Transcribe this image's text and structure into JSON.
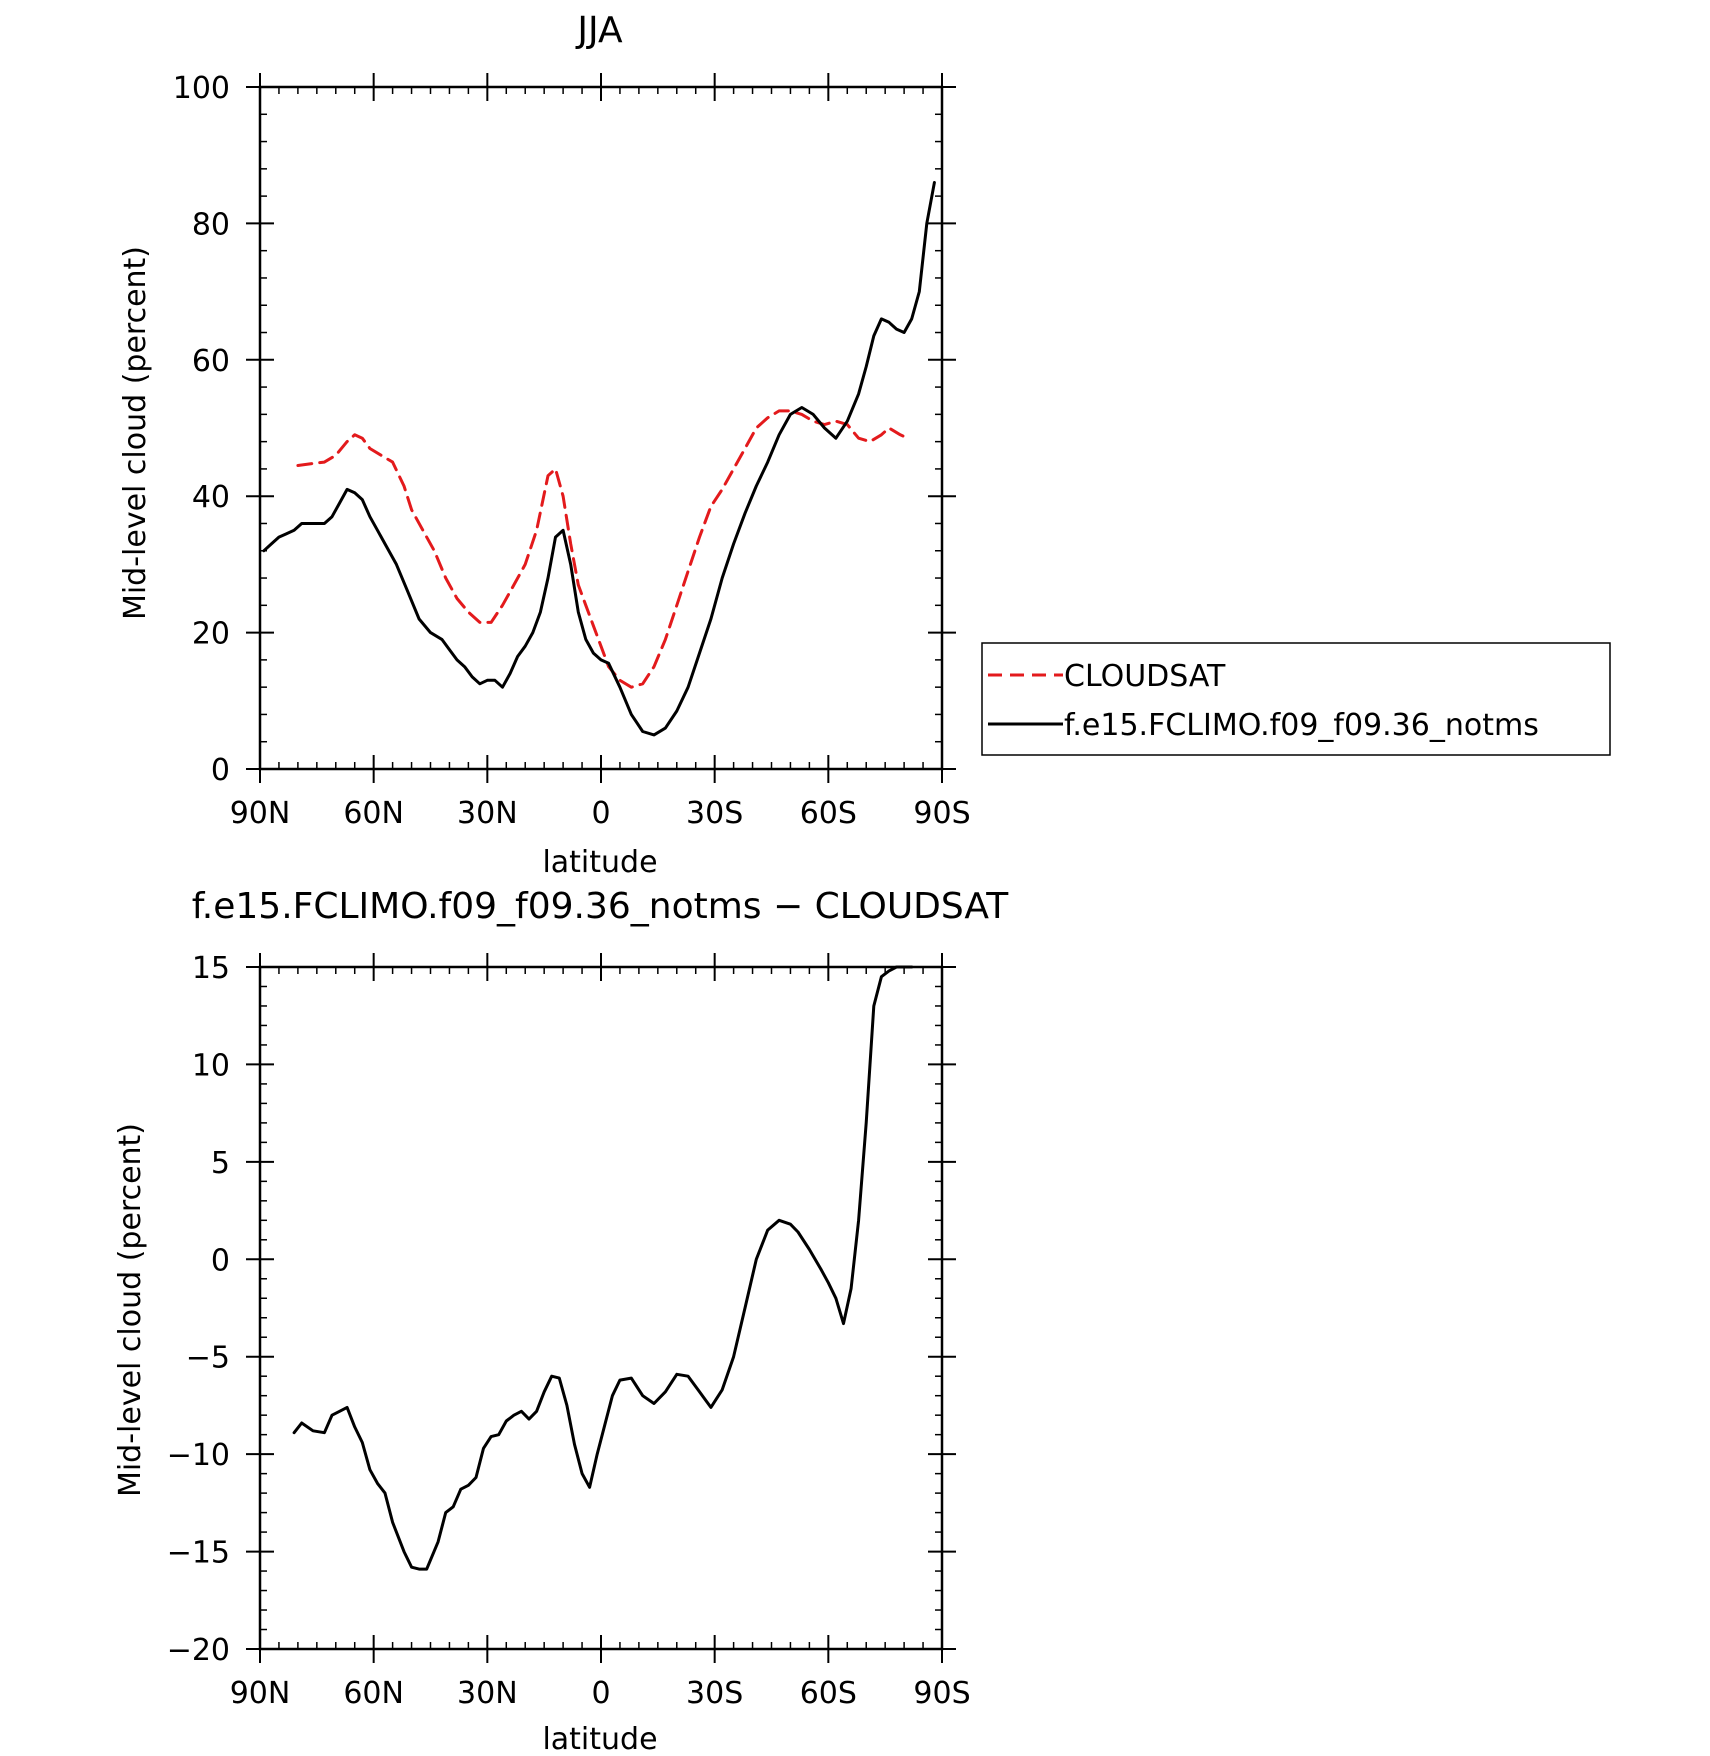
{
  "chart_data": [
    {
      "type": "line",
      "title": "JJA",
      "xlabel": "latitude",
      "ylabel": "Mid-level cloud (percent)",
      "xlim": [
        90,
        -90
      ],
      "ylim": [
        0,
        100
      ],
      "x_tick_values": [
        90,
        60,
        30,
        0,
        -30,
        -60,
        -90
      ],
      "x_tick_labels": [
        "90N",
        "60N",
        "30N",
        "0",
        "30S",
        "60S",
        "90S"
      ],
      "y_ticks": [
        0,
        20,
        40,
        60,
        80,
        100
      ],
      "legend_position": "right",
      "series": [
        {
          "name": "CLOUDSAT",
          "color": "#e31a1c",
          "dash": true,
          "x": [
            80,
            76,
            73,
            70,
            67,
            65,
            63,
            61,
            58,
            55,
            52,
            50,
            47,
            44,
            41,
            38,
            35,
            32,
            29,
            26,
            23,
            20,
            17,
            14,
            12,
            10,
            8,
            6,
            4,
            2,
            0,
            -2,
            -5,
            -8,
            -11,
            -14,
            -17,
            -20,
            -23,
            -26,
            -29,
            -32,
            -35,
            -38,
            -41,
            -44,
            -47,
            -50,
            -53,
            -56,
            -59,
            -62,
            -65,
            -68,
            -71,
            -74,
            -76,
            -79,
            -81
          ],
          "y": [
            44.5,
            44.8,
            45.0,
            46.0,
            48.0,
            49.0,
            48.5,
            47.0,
            46.0,
            45.0,
            41.5,
            38.0,
            35.0,
            32.0,
            28.0,
            25.0,
            23.0,
            21.5,
            21.5,
            24.0,
            27.0,
            30.0,
            35.0,
            43.0,
            44.0,
            40.0,
            33.0,
            27.0,
            24.0,
            21.0,
            18.0,
            15.0,
            13.0,
            12.0,
            12.5,
            15.0,
            19.0,
            24.0,
            29.0,
            34.0,
            38.5,
            41.0,
            44.0,
            47.0,
            50.0,
            51.5,
            52.5,
            52.5,
            52.0,
            51.0,
            50.5,
            51.0,
            50.5,
            48.5,
            48.0,
            49.0,
            50.0,
            49.0,
            48.5
          ]
        },
        {
          "name": "f.e15.FCLIMO.f09_f09.36_notms",
          "color": "#000000",
          "dash": false,
          "x": [
            89,
            87,
            85,
            83,
            81,
            79,
            76,
            73,
            71,
            69,
            67,
            65,
            63,
            61,
            59,
            57,
            54,
            51,
            48,
            45,
            42,
            40,
            38,
            36,
            34,
            32,
            30,
            28,
            26,
            24,
            22,
            20,
            18,
            16,
            14,
            12,
            10,
            8,
            6,
            4,
            2,
            0,
            -2,
            -5,
            -8,
            -11,
            -14,
            -17,
            -20,
            -23,
            -26,
            -29,
            -32,
            -35,
            -38,
            -41,
            -44,
            -47,
            -50,
            -53,
            -56,
            -59,
            -62,
            -65,
            -68,
            -70,
            -72,
            -74,
            -76,
            -78,
            -80,
            -82,
            -84,
            -86,
            -88
          ],
          "y": [
            32.0,
            33.0,
            34.0,
            34.5,
            35.0,
            36.0,
            36.0,
            36.0,
            37.0,
            39.0,
            41.0,
            40.5,
            39.5,
            37.0,
            35.0,
            33.0,
            30.0,
            26.0,
            22.0,
            20.0,
            19.0,
            17.5,
            16.0,
            15.0,
            13.5,
            12.5,
            13.0,
            13.0,
            12.0,
            14.0,
            16.5,
            18.0,
            20.0,
            23.0,
            28.0,
            34.0,
            35.0,
            30.0,
            23.0,
            19.0,
            17.0,
            16.0,
            15.5,
            12.0,
            8.0,
            5.5,
            5.0,
            6.0,
            8.5,
            12.0,
            17.0,
            22.0,
            28.0,
            33.0,
            37.5,
            41.5,
            45.0,
            49.0,
            52.0,
            53.0,
            52.0,
            50.0,
            48.5,
            51.0,
            55.0,
            59.0,
            63.5,
            66.0,
            65.5,
            64.5,
            64.0,
            66.0,
            70.0,
            80.0,
            86.0
          ]
        }
      ]
    },
    {
      "type": "line",
      "title": "f.e15.FCLIMO.f09_f09.36_notms − CLOUDSAT",
      "xlabel": "latitude",
      "ylabel": "Mid-level cloud (percent)",
      "xlim": [
        90,
        -90
      ],
      "ylim": [
        -20,
        15
      ],
      "x_tick_values": [
        90,
        60,
        30,
        0,
        -30,
        -60,
        -90
      ],
      "x_tick_labels": [
        "90N",
        "60N",
        "30N",
        "0",
        "30S",
        "60S",
        "90S"
      ],
      "y_ticks": [
        -20,
        -15,
        -10,
        -5,
        0,
        5,
        10,
        15
      ],
      "y_tick_labels": [
        "−20",
        "−15",
        "−10",
        "−5",
        "0",
        "5",
        "10",
        "15"
      ],
      "series": [
        {
          "color": "#000000",
          "dash": false,
          "x": [
            81,
            79,
            76,
            73,
            71,
            69,
            67,
            65,
            63,
            61,
            59,
            57,
            55,
            52,
            50,
            48,
            46,
            43,
            41,
            39,
            37,
            35,
            33,
            31,
            29,
            27,
            25,
            23,
            21,
            19,
            17,
            15,
            13,
            11,
            9,
            7,
            5,
            3,
            1,
            -1,
            -3,
            -5,
            -8,
            -11,
            -14,
            -17,
            -20,
            -23,
            -26,
            -29,
            -32,
            -35,
            -38,
            -41,
            -44,
            -47,
            -50,
            -52,
            -55,
            -58,
            -60,
            -62,
            -64,
            -66,
            -68,
            -70,
            -72,
            -74,
            -76,
            -78,
            -80,
            -82
          ],
          "y": [
            -8.9,
            -8.4,
            -8.8,
            -8.9,
            -8.0,
            -7.8,
            -7.6,
            -8.6,
            -9.4,
            -10.8,
            -11.5,
            -12.0,
            -13.5,
            -15.0,
            -15.8,
            -15.9,
            -15.9,
            -14.5,
            -13.0,
            -12.7,
            -11.8,
            -11.6,
            -11.2,
            -9.7,
            -9.1,
            -9.0,
            -8.3,
            -8.0,
            -7.8,
            -8.2,
            -7.8,
            -6.8,
            -6.0,
            -6.1,
            -7.5,
            -9.5,
            -11.0,
            -11.7,
            -10.0,
            -8.5,
            -7.0,
            -6.2,
            -6.1,
            -7.0,
            -7.4,
            -6.8,
            -5.9,
            -6.0,
            -6.8,
            -7.6,
            -6.7,
            -5.0,
            -2.5,
            0.0,
            1.5,
            2.0,
            1.8,
            1.4,
            0.5,
            -0.5,
            -1.2,
            -2.0,
            -3.3,
            -1.5,
            2.0,
            7.0,
            13.0,
            14.5,
            14.8,
            15.0,
            15.0,
            15.0
          ]
        }
      ]
    }
  ]
}
